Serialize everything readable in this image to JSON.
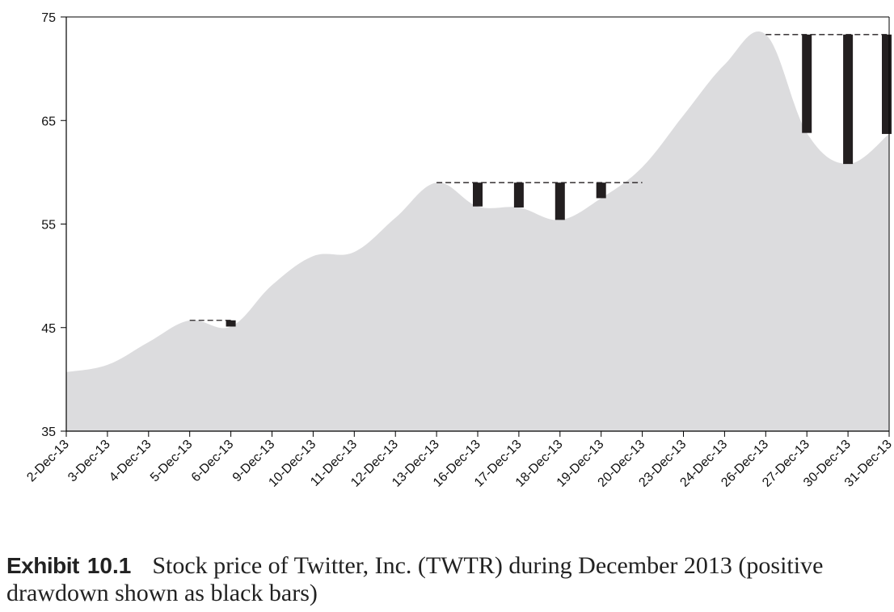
{
  "caption": {
    "label": "Exhibit",
    "number": "10.1",
    "text": "Stock price of Twitter, Inc. (TWTR) during December 2013 (positive drawdown shown as black bars)"
  },
  "chart_data": {
    "type": "area",
    "title": "",
    "xlabel": "",
    "ylabel": "",
    "ylim": [
      35,
      75
    ],
    "yticks": [
      35,
      45,
      55,
      65,
      75
    ],
    "grid": false,
    "legend": "none",
    "colors": {
      "area": "#dcdcde",
      "drawdown": "#231f20",
      "peak_line": "#231f20",
      "axis": "#000000"
    },
    "categories": [
      "2-Dec-13",
      "3-Dec-13",
      "4-Dec-13",
      "5-Dec-13",
      "6-Dec-13",
      "9-Dec-13",
      "10-Dec-13",
      "11-Dec-13",
      "12-Dec-13",
      "13-Dec-13",
      "16-Dec-13",
      "17-Dec-13",
      "18-Dec-13",
      "19-Dec-13",
      "20-Dec-13",
      "23-Dec-13",
      "24-Dec-13",
      "26-Dec-13",
      "27-Dec-13",
      "30-Dec-13",
      "31-Dec-13"
    ],
    "series": [
      {
        "values": [
          40.7,
          41.4,
          43.6,
          45.7,
          45.1,
          49.1,
          51.9,
          52.3,
          55.6,
          59.0,
          56.7,
          56.6,
          55.4,
          57.5,
          60.5,
          65.5,
          70.4,
          73.3,
          63.8,
          60.8,
          63.7
        ]
      }
    ],
    "drawdowns": [
      {
        "date": "6-Dec-13",
        "peak": 45.7,
        "price": 45.1
      },
      {
        "date": "16-Dec-13",
        "peak": 59.0,
        "price": 56.7
      },
      {
        "date": "17-Dec-13",
        "peak": 59.0,
        "price": 56.6
      },
      {
        "date": "18-Dec-13",
        "peak": 59.0,
        "price": 55.4
      },
      {
        "date": "19-Dec-13",
        "peak": 59.0,
        "price": 57.5
      },
      {
        "date": "27-Dec-13",
        "peak": 73.3,
        "price": 63.8
      },
      {
        "date": "30-Dec-13",
        "peak": 73.3,
        "price": 60.8
      },
      {
        "date": "31-Dec-13",
        "peak": 73.3,
        "price": 63.7
      }
    ],
    "peak_lines": [
      {
        "from": "5-Dec-13",
        "to": "6-Dec-13",
        "value": 45.7
      },
      {
        "from": "13-Dec-13",
        "to": "20-Dec-13",
        "value": 59.0
      },
      {
        "from": "26-Dec-13",
        "to": "31-Dec-13",
        "value": 73.3
      }
    ]
  }
}
